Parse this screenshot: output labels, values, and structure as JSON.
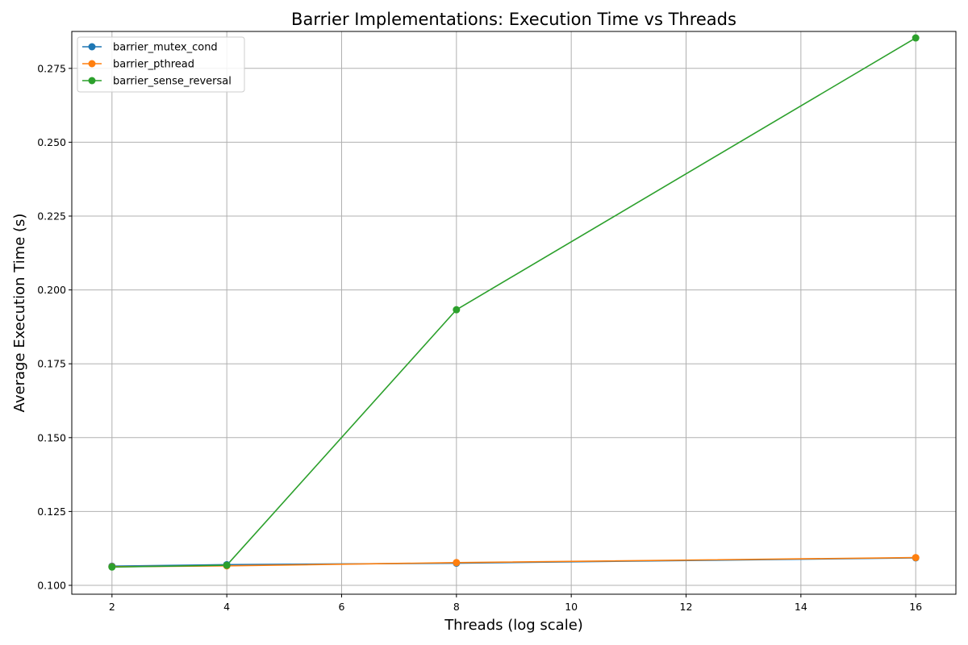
{
  "chart_data": {
    "type": "line",
    "title": "Barrier Implementations: Execution Time vs Threads",
    "xlabel": "Threads (log scale)",
    "ylabel": "Average Execution Time (s)",
    "xlim": [
      1.3,
      16.7
    ],
    "ylim": [
      0.097,
      0.2875
    ],
    "xticks": [
      2,
      4,
      6,
      8,
      10,
      12,
      14,
      16
    ],
    "yticks": [
      0.1,
      0.125,
      0.15,
      0.175,
      0.2,
      0.225,
      0.25,
      0.275
    ],
    "ytick_labels": [
      "0.100",
      "0.125",
      "0.150",
      "0.175",
      "0.200",
      "0.225",
      "0.250",
      "0.275"
    ],
    "grid": true,
    "legend_position": "top-left",
    "x": [
      2,
      4,
      8,
      16
    ],
    "series": [
      {
        "name": "barrier_mutex_cond",
        "color": "#1f77b4",
        "values": [
          0.1065,
          0.107,
          0.1075,
          0.1093
        ]
      },
      {
        "name": "barrier_pthread",
        "color": "#ff7f0e",
        "values": [
          0.1063,
          0.1066,
          0.1077,
          0.1094
        ]
      },
      {
        "name": "barrier_sense_reversal",
        "color": "#2ca02c",
        "values": [
          0.1062,
          0.1068,
          0.1933,
          0.2853
        ]
      }
    ]
  }
}
